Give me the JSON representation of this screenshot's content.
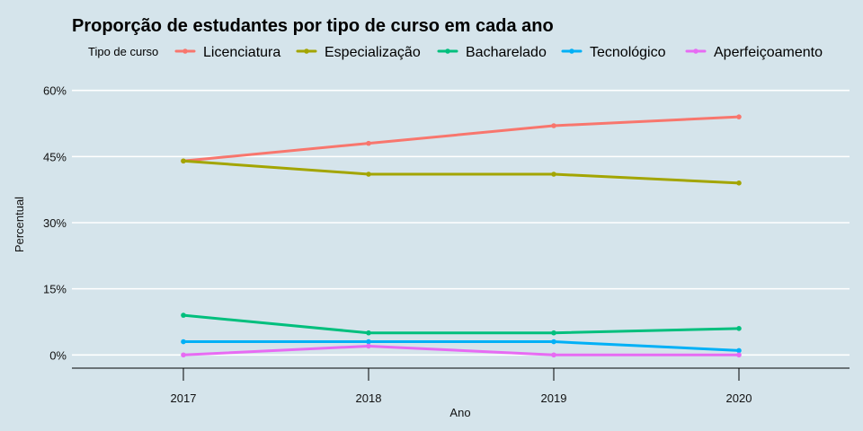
{
  "chart_data": {
    "type": "line",
    "title": "Proporção de estudantes por tipo de curso em cada ano",
    "xlabel": "Ano",
    "ylabel": "Percentual",
    "x": [
      "2017",
      "2018",
      "2019",
      "2020"
    ],
    "y_ticks": [
      0,
      15,
      30,
      45,
      60
    ],
    "y_tick_labels": [
      "0%",
      "15%",
      "30%",
      "45%",
      "60%"
    ],
    "ylim": [
      -3,
      63
    ],
    "grid": true,
    "legend": {
      "title": "Tipo de curso",
      "position": "top"
    },
    "series": [
      {
        "name": "Licenciatura",
        "color": "#f8766d",
        "values": [
          44,
          48,
          52,
          54
        ]
      },
      {
        "name": "Especialização",
        "color": "#a3a500",
        "values": [
          44,
          41,
          41,
          39
        ]
      },
      {
        "name": "Bacharelado",
        "color": "#00bf7d",
        "values": [
          9,
          5,
          5,
          6
        ]
      },
      {
        "name": "Tecnológico",
        "color": "#00b0f6",
        "values": [
          3,
          3,
          3,
          1
        ]
      },
      {
        "name": "Aperfeiçoamento",
        "color": "#e76bf3",
        "values": [
          0,
          2,
          0,
          0
        ]
      }
    ]
  }
}
